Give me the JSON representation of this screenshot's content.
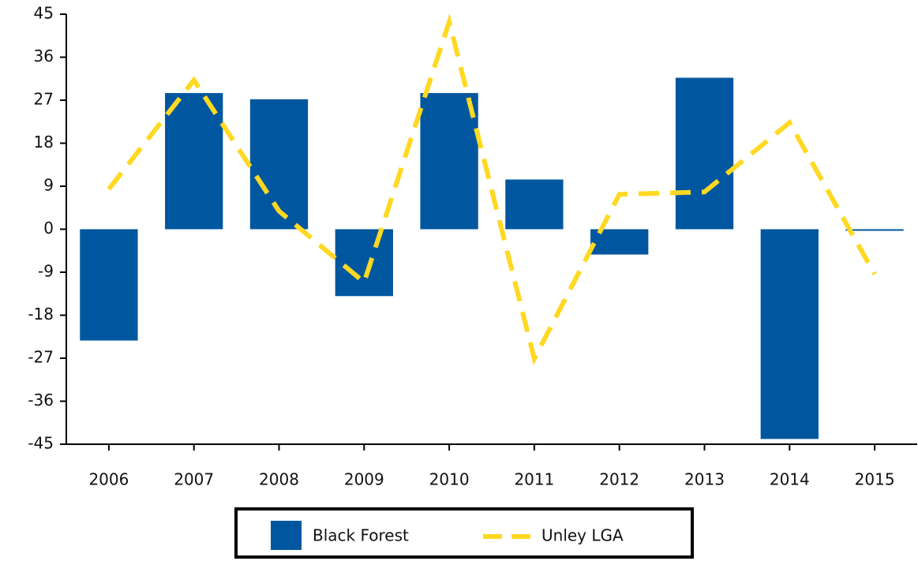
{
  "chart_data": {
    "type": "bar",
    "categories": [
      "2006",
      "2007",
      "2008",
      "2009",
      "2010",
      "2011",
      "2012",
      "2013",
      "2014",
      "2015"
    ],
    "series": [
      {
        "name": "Black Forest",
        "type": "bar",
        "color": "#00579f",
        "values": [
          -23.3,
          28.5,
          27.2,
          -14.0,
          28.5,
          10.4,
          -5.3,
          31.7,
          -43.9,
          0
        ]
      },
      {
        "name": "Unley LGA",
        "type": "line",
        "color": "#ffd822",
        "values": [
          8.4,
          31.2,
          3.8,
          -11.1,
          43.4,
          -27.1,
          7.3,
          7.8,
          22.3,
          -9.4
        ]
      }
    ],
    "ylim": [
      -45,
      45
    ],
    "yticks": [
      -45,
      -36,
      -27,
      -18,
      -9,
      0,
      9,
      18,
      27,
      36,
      45
    ],
    "grid": false,
    "legend": "bottom"
  }
}
